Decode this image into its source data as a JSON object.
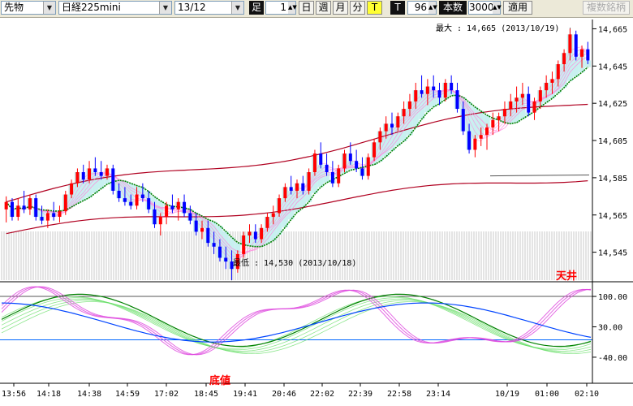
{
  "toolbar": {
    "product": "先物",
    "index": "日経225mini",
    "contract": "13/12",
    "bar_label": "足",
    "bar_value": "1",
    "day_button": "日",
    "week_button": "週",
    "month_button": "月",
    "minute_button": "分",
    "tick_button": "T",
    "t_label": "T",
    "t_value": "96",
    "count_label": "本数",
    "count_value": "3000",
    "apply_button": "適用",
    "multi_button": "複数銘柄"
  },
  "chart_data": {
    "type": "candlestick",
    "price_panel": {
      "ylim": [
        14530,
        14670
      ],
      "y_ticks": [
        "14,665",
        "14,645",
        "14,625",
        "14,605",
        "14,585",
        "14,565",
        "14,545"
      ],
      "y_tick_values": [
        14665,
        14645,
        14625,
        14605,
        14585,
        14565,
        14545
      ],
      "max_label": "最大 : 14,665 (2013/10/19)",
      "min_label": "最低 : 14,530 (2013/10/18)",
      "candles": [
        [
          14568,
          14575,
          14561,
          14572
        ],
        [
          14572,
          14574,
          14562,
          14564
        ],
        [
          14564,
          14574,
          14562,
          14570
        ],
        [
          14570,
          14578,
          14566,
          14568
        ],
        [
          14568,
          14576,
          14565,
          14574
        ],
        [
          14574,
          14576,
          14562,
          14564
        ],
        [
          14564,
          14570,
          14560,
          14562
        ],
        [
          14562,
          14568,
          14558,
          14566
        ],
        [
          14566,
          14572,
          14562,
          14564
        ],
        [
          14564,
          14570,
          14561,
          14567
        ],
        [
          14567,
          14578,
          14565,
          14576
        ],
        [
          14576,
          14584,
          14574,
          14582
        ],
        [
          14582,
          14590,
          14580,
          14588
        ],
        [
          14588,
          14592,
          14582,
          14584
        ],
        [
          14584,
          14594,
          14582,
          14590
        ],
        [
          14590,
          14596,
          14586,
          14588
        ],
        [
          14588,
          14594,
          14584,
          14586
        ],
        [
          14586,
          14592,
          14584,
          14590
        ],
        [
          14590,
          14592,
          14576,
          14578
        ],
        [
          14578,
          14582,
          14572,
          14574
        ],
        [
          14574,
          14580,
          14570,
          14572
        ],
        [
          14572,
          14576,
          14568,
          14570
        ],
        [
          14570,
          14580,
          14568,
          14576
        ],
        [
          14576,
          14582,
          14572,
          14574
        ],
        [
          14574,
          14578,
          14566,
          14568
        ],
        [
          14568,
          14572,
          14558,
          14560
        ],
        [
          14560,
          14566,
          14554,
          14564
        ],
        [
          14564,
          14572,
          14560,
          14570
        ],
        [
          14570,
          14576,
          14566,
          14568
        ],
        [
          14568,
          14574,
          14562,
          14572
        ],
        [
          14572,
          14576,
          14564,
          14566
        ],
        [
          14566,
          14570,
          14560,
          14562
        ],
        [
          14562,
          14566,
          14554,
          14556
        ],
        [
          14556,
          14562,
          14552,
          14558
        ],
        [
          14558,
          14562,
          14548,
          14550
        ],
        [
          14550,
          14556,
          14544,
          14548
        ],
        [
          14548,
          14552,
          14540,
          14542
        ],
        [
          14542,
          14548,
          14536,
          14540
        ],
        [
          14540,
          14546,
          14530,
          14536
        ],
        [
          14536,
          14546,
          14534,
          14544
        ],
        [
          14544,
          14556,
          14542,
          14554
        ],
        [
          14554,
          14560,
          14550,
          14556
        ],
        [
          14556,
          14560,
          14550,
          14552
        ],
        [
          14552,
          14560,
          14550,
          14558
        ],
        [
          14558,
          14566,
          14556,
          14564
        ],
        [
          14564,
          14570,
          14560,
          14566
        ],
        [
          14566,
          14576,
          14564,
          14574
        ],
        [
          14574,
          14582,
          14572,
          14580
        ],
        [
          14580,
          14586,
          14576,
          14578
        ],
        [
          14578,
          14584,
          14574,
          14582
        ],
        [
          14582,
          14586,
          14576,
          14578
        ],
        [
          14578,
          14590,
          14576,
          14588
        ],
        [
          14588,
          14600,
          14586,
          14598
        ],
        [
          14598,
          14604,
          14590,
          14592
        ],
        [
          14592,
          14598,
          14586,
          14588
        ],
        [
          14588,
          14594,
          14580,
          14582
        ],
        [
          14582,
          14592,
          14580,
          14590
        ],
        [
          14590,
          14600,
          14588,
          14598
        ],
        [
          14598,
          14604,
          14592,
          14594
        ],
        [
          14594,
          14600,
          14588,
          14590
        ],
        [
          14590,
          14596,
          14584,
          14586
        ],
        [
          14586,
          14598,
          14584,
          14596
        ],
        [
          14596,
          14606,
          14594,
          14604
        ],
        [
          14604,
          14612,
          14600,
          14610
        ],
        [
          14610,
          14618,
          14606,
          14614
        ],
        [
          14614,
          14620,
          14608,
          14612
        ],
        [
          14612,
          14620,
          14610,
          14618
        ],
        [
          14618,
          14626,
          14614,
          14622
        ],
        [
          14622,
          14630,
          14618,
          14626
        ],
        [
          14626,
          14636,
          14622,
          14632
        ],
        [
          14632,
          14640,
          14628,
          14630
        ],
        [
          14630,
          14638,
          14624,
          14634
        ],
        [
          14634,
          14640,
          14628,
          14632
        ],
        [
          14632,
          14636,
          14624,
          14628
        ],
        [
          14628,
          14638,
          14626,
          14636
        ],
        [
          14636,
          14640,
          14630,
          14632
        ],
        [
          14632,
          14636,
          14620,
          14622
        ],
        [
          14622,
          14626,
          14608,
          14610
        ],
        [
          14610,
          14614,
          14598,
          14600
        ],
        [
          14600,
          14608,
          14596,
          14606
        ],
        [
          14606,
          14612,
          14602,
          14608
        ],
        [
          14608,
          14614,
          14600,
          14612
        ],
        [
          14612,
          14620,
          14608,
          14616
        ],
        [
          14616,
          14620,
          14610,
          14618
        ],
        [
          14618,
          14626,
          14614,
          14622
        ],
        [
          14622,
          14630,
          14618,
          14626
        ],
        [
          14626,
          14634,
          14620,
          14628
        ],
        [
          14628,
          14636,
          14624,
          14630
        ],
        [
          14630,
          14634,
          14618,
          14620
        ],
        [
          14620,
          14628,
          14616,
          14626
        ],
        [
          14626,
          14634,
          14622,
          14632
        ],
        [
          14632,
          14640,
          14628,
          14636
        ],
        [
          14636,
          14642,
          14630,
          14638
        ],
        [
          14638,
          14648,
          14634,
          14646
        ],
        [
          14646,
          14654,
          14642,
          14652
        ],
        [
          14652,
          14665,
          14648,
          14662
        ],
        [
          14662,
          14664,
          14648,
          14650
        ],
        [
          14650,
          14656,
          14644,
          14654
        ],
        [
          14654,
          14658,
          14646,
          14648
        ]
      ]
    },
    "oscillator_panel": {
      "ylim": [
        -100,
        130
      ],
      "y_ticks": [
        "100.00",
        "30.00",
        "-40.00"
      ],
      "y_tick_values": [
        100,
        30,
        -40
      ]
    },
    "x_ticks": [
      "13:56",
      "14:18",
      "14:38",
      "14:59",
      "17:02",
      "18:45",
      "19:41",
      "20:46",
      "22:02",
      "22:39",
      "22:58",
      "23:14",
      "10/19",
      "01:00",
      "02:10"
    ],
    "annotations": {
      "top": "天井",
      "bottom": "底値"
    }
  },
  "colors": {
    "up": "#ff0000",
    "down": "#0000ff",
    "ma_short": "#ff88dd",
    "ma_mid": "#008000",
    "ma_long": "#b00020",
    "fill": "#c8f0f0"
  }
}
